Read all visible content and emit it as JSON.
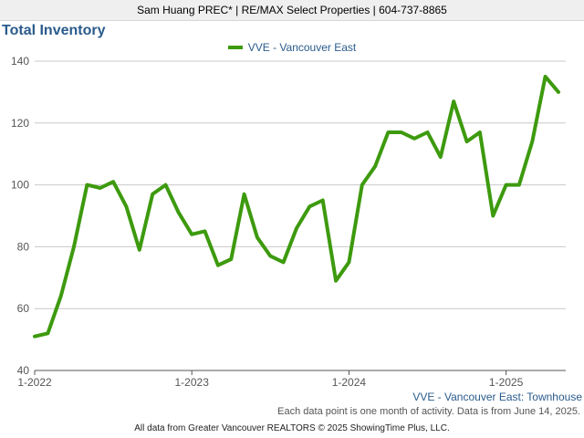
{
  "header": {
    "agent_line": "Sam Huang PREC* | RE/MAX Select Properties | 604-737-8865"
  },
  "chart_title": "Total Inventory",
  "legend_label": "VVE - Vancouver East",
  "series_note": "VVE - Vancouver East: Townhouse",
  "data_note": "Each data point is one month of activity. Data is from June 14, 2025.",
  "footer": "All data from Greater Vancouver REALTORS © 2025 ShowingTime Plus, LLC.",
  "colors": {
    "line": "#3d9a0e",
    "title": "#2a5b8c",
    "grid": "#c8c8c8"
  },
  "chart_data": {
    "type": "line",
    "title": "Total Inventory",
    "ylim": [
      40,
      140
    ],
    "yticks": [
      40,
      60,
      80,
      100,
      120,
      140
    ],
    "xticks": [
      {
        "label": "1-2022",
        "index": 0
      },
      {
        "label": "1-2023",
        "index": 12
      },
      {
        "label": "1-2024",
        "index": 24
      },
      {
        "label": "1-2025",
        "index": 36
      }
    ],
    "grid": true,
    "legend_position": "top-center",
    "series": [
      {
        "name": "VVE - Vancouver East",
        "start": "1-2022",
        "values": [
          51,
          52,
          64,
          80,
          100,
          99,
          101,
          93,
          79,
          97,
          100,
          91,
          84,
          85,
          74,
          76,
          97,
          83,
          77,
          75,
          86,
          93,
          95,
          69,
          75,
          100,
          106,
          117,
          117,
          115,
          117,
          109,
          127,
          114,
          117,
          90,
          100,
          100,
          114,
          135,
          130
        ]
      }
    ]
  }
}
